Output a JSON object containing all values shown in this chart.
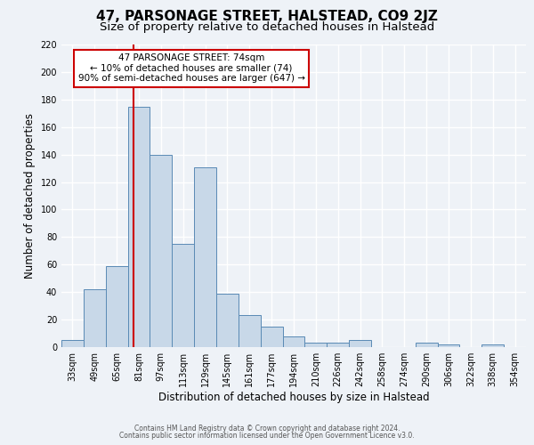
{
  "title": "47, PARSONAGE STREET, HALSTEAD, CO9 2JZ",
  "subtitle": "Size of property relative to detached houses in Halstead",
  "xlabel": "Distribution of detached houses by size in Halstead",
  "ylabel": "Number of detached properties",
  "categories": [
    "33sqm",
    "49sqm",
    "65sqm",
    "81sqm",
    "97sqm",
    "113sqm",
    "129sqm",
    "145sqm",
    "161sqm",
    "177sqm",
    "194sqm",
    "210sqm",
    "226sqm",
    "242sqm",
    "258sqm",
    "274sqm",
    "290sqm",
    "306sqm",
    "322sqm",
    "338sqm",
    "354sqm"
  ],
  "values": [
    5,
    42,
    59,
    175,
    140,
    75,
    131,
    39,
    23,
    15,
    8,
    3,
    3,
    5,
    0,
    0,
    3,
    2,
    0,
    2,
    0
  ],
  "bar_color": "#c8d8e8",
  "bar_edge_color": "#5a8ab5",
  "red_line_x": 2.75,
  "annotation_text": "47 PARSONAGE STREET: 74sqm\n← 10% of detached houses are smaller (74)\n90% of semi-detached houses are larger (647) →",
  "annotation_box_color": "#ffffff",
  "annotation_box_edge": "#cc0000",
  "ylim": [
    0,
    220
  ],
  "yticks": [
    0,
    20,
    40,
    60,
    80,
    100,
    120,
    140,
    160,
    180,
    200,
    220
  ],
  "title_fontsize": 11,
  "subtitle_fontsize": 9.5,
  "xlabel_fontsize": 8.5,
  "ylabel_fontsize": 8.5,
  "tick_fontsize": 7,
  "annotation_fontsize": 7.5,
  "footer_line1": "Contains HM Land Registry data © Crown copyright and database right 2024.",
  "footer_line2": "Contains public sector information licensed under the Open Government Licence v3.0.",
  "background_color": "#eef2f7",
  "grid_color": "#ffffff"
}
